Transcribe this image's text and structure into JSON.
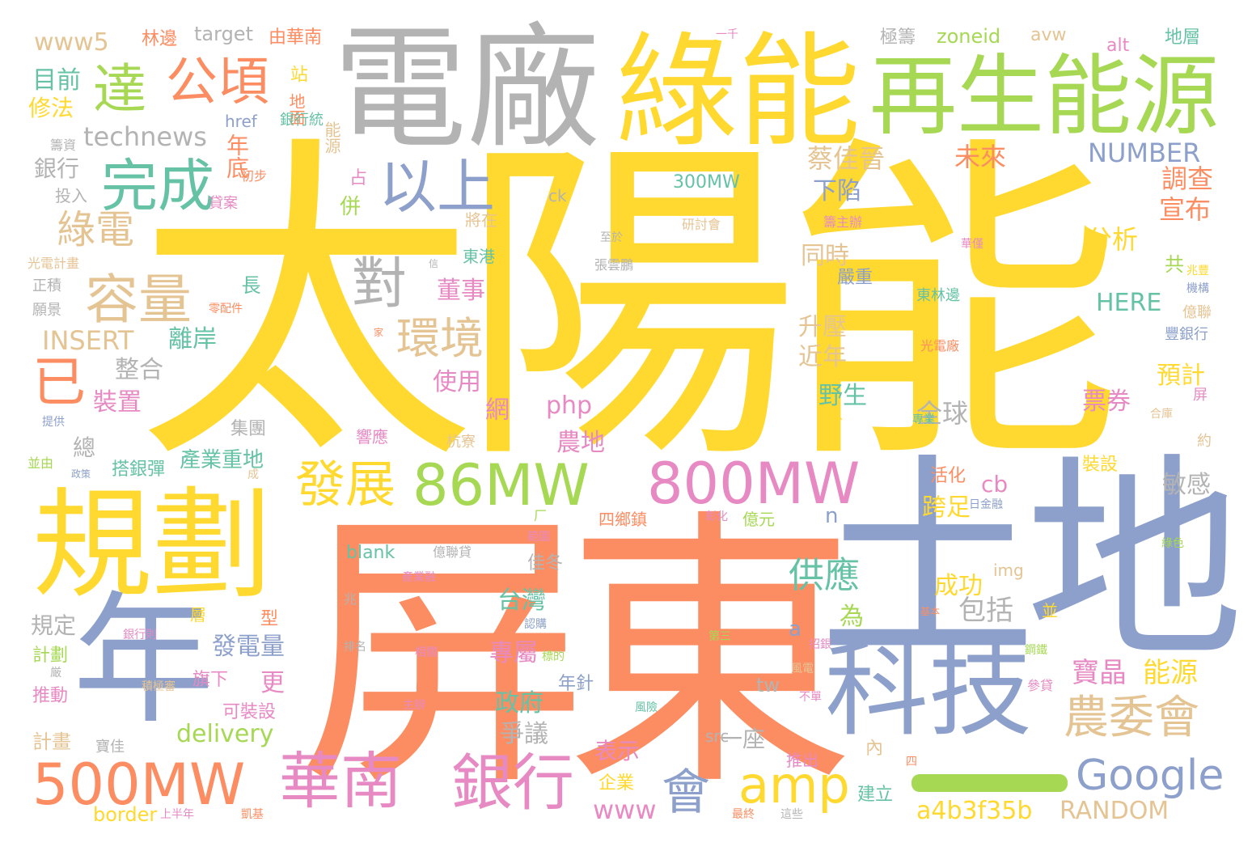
{
  "colors": {
    "gold": "#FFD92F",
    "orange": "#FC8D62",
    "blue": "#8DA0CB",
    "green": "#A6D854",
    "teal": "#66C2A5",
    "pink": "#E78AC3",
    "tan": "#E5C494",
    "gray": "#B3B3B3"
  },
  "words": [
    "太陽能",
    "屏東",
    "土地",
    "電廠",
    "綠能",
    "再生能源",
    "規劃",
    "年",
    "科技",
    "達",
    "公頃",
    "完成",
    "以上",
    "容量",
    "對",
    "已",
    "環境",
    "綠電",
    "86MW",
    "800MW",
    "500MW",
    "華南",
    "銀行",
    "發展",
    "amp",
    "會",
    "Google",
    "農委會",
    "供應",
    "NUMBER",
    "RANDOM",
    "a4b3f35b",
    "www",
    "technews",
    "INSERT",
    "HERE",
    "www5",
    "target",
    "zoneid",
    "avw",
    "alt",
    "delivery",
    "border",
    "blank",
    "php",
    "cb",
    "tw",
    "src",
    "img",
    "ck",
    "href",
    "300MW",
    "n",
    "a",
    "林邊",
    "由華南",
    "一千",
    "極籌",
    "地層",
    "目前",
    "修法",
    "站",
    "地面",
    "銀行統",
    "投入",
    "貸案",
    "初步",
    "能源",
    "占",
    "併",
    "蔡佳晉",
    "未來",
    "調查",
    "宣布",
    "下陷",
    "分析",
    "年底",
    "銀行",
    "整合",
    "離岸",
    "裝置",
    "總",
    "集團",
    "搭銀彈",
    "產業重地",
    "升壓",
    "近年",
    "野生",
    "於",
    "全球",
    "同時",
    "嚴重",
    "長",
    "董事",
    "使用",
    "網",
    "農地",
    "跨足",
    "敏感",
    "裝設",
    "活化",
    "共",
    "預計",
    "票券",
    "億聯",
    "豐銀行",
    "屏",
    "佳冬",
    "台灣",
    "專屬",
    "政府",
    "爭議",
    "一座",
    "表示",
    "企業",
    "內",
    "推出",
    "建立",
    "成功",
    "為",
    "包括",
    "寶晶",
    "能源",
    "發電量",
    "更",
    "旗下",
    "可裝設",
    "年針",
    "規定",
    "計劃",
    "推動",
    "計畫",
    "寶佳",
    "東港",
    "東林邊",
    "光電廠",
    "四鄉鎮",
    "億元",
    "億聯貸",
    "四",
    "光電計畫",
    "正積",
    "願景",
    "零配件",
    "家",
    "信",
    "提供",
    "並由",
    "政策",
    "成",
    "杭寮",
    "響應",
    "彰化",
    "範圍",
    "厂",
    "籌資",
    "至於",
    "張雲鵬",
    "研討會",
    "籌主辦",
    "華僅",
    "兆豐",
    "機構",
    "將在",
    "約",
    "專業",
    "合庫",
    "日金融",
    "綠色",
    "基本",
    "層",
    "型",
    "兆",
    "產業融",
    "第三",
    "相關",
    "標的",
    "風電",
    "不單",
    "參貸",
    "鋼鐵",
    "並",
    "排名",
    "積極審",
    "主辦",
    "風險",
    "上半年",
    "最終",
    "這些",
    "凱基",
    "銀行則",
    "認購",
    "招銀",
    "厳"
  ]
}
